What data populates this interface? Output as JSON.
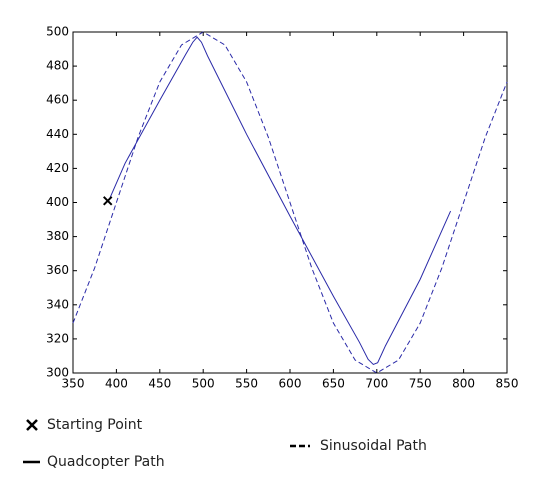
{
  "chart_data": {
    "type": "line",
    "xlim": [
      350,
      850
    ],
    "ylim": [
      300,
      500
    ],
    "xticks": [
      350,
      400,
      450,
      500,
      550,
      600,
      650,
      700,
      750,
      800,
      850
    ],
    "yticks": [
      300,
      320,
      340,
      360,
      380,
      400,
      420,
      440,
      460,
      480,
      500
    ],
    "series": [
      {
        "name": "Sinusoidal Path",
        "color": "#2a2aa8",
        "dashed": true,
        "x": [
          350,
          375,
          400,
          425,
          450,
          475,
          500,
          525,
          550,
          575,
          600,
          625,
          650,
          675,
          700,
          725,
          750,
          775,
          800,
          825,
          850
        ],
        "values": [
          329.3,
          361.7,
          400,
          438.3,
          470.7,
          492.4,
          500,
          492.4,
          470.7,
          438.3,
          400,
          361.7,
          329.3,
          307.6,
          300,
          307.6,
          329.3,
          361.7,
          400,
          438.3,
          470.7
        ]
      },
      {
        "name": "Quadcopter Path",
        "color": "#2a2aa8",
        "dashed": false,
        "x": [
          392,
          410,
          450,
          480,
          488,
          493,
          498,
          505,
          550,
          600,
          650,
          680,
          690,
          696,
          701,
          710,
          750,
          785
        ],
        "values": [
          402,
          423,
          460,
          487,
          494,
          497,
          494,
          486,
          440,
          392,
          345,
          318,
          308,
          305,
          306,
          316,
          355,
          395
        ]
      }
    ],
    "points": [
      {
        "name": "Starting Point",
        "x": 390,
        "y": 401,
        "color": "#000000"
      }
    ]
  }
}
